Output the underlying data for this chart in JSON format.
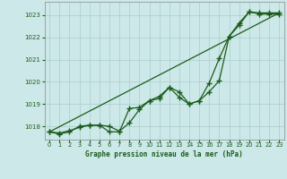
{
  "title": "Graphe pression niveau de la mer (hPa)",
  "background_color": "#cce8e8",
  "plot_bg_color": "#cce8e8",
  "grid_color": "#aacece",
  "line_color": "#1a5c1a",
  "xlim": [
    -0.5,
    23.5
  ],
  "ylim": [
    1017.4,
    1023.6
  ],
  "xticks": [
    0,
    1,
    2,
    3,
    4,
    5,
    6,
    7,
    8,
    9,
    10,
    11,
    12,
    13,
    14,
    15,
    16,
    17,
    18,
    19,
    20,
    21,
    22,
    23
  ],
  "yticks": [
    1018,
    1019,
    1020,
    1021,
    1022,
    1023
  ],
  "hours": [
    0,
    1,
    2,
    3,
    4,
    5,
    6,
    7,
    8,
    9,
    10,
    11,
    12,
    13,
    14,
    15,
    16,
    17,
    18,
    19,
    20,
    21,
    22,
    23
  ],
  "trend_x": [
    0,
    23
  ],
  "trend_y": [
    1017.75,
    1023.1
  ],
  "line1_y": [
    1017.75,
    1017.7,
    1017.8,
    1017.95,
    1018.05,
    1018.05,
    1018.0,
    1017.78,
    1018.15,
    1018.75,
    1019.15,
    1019.35,
    1019.75,
    1019.3,
    1019.0,
    1019.15,
    1019.55,
    1020.05,
    1022.05,
    1022.65,
    1023.15,
    1023.1,
    1023.1,
    1023.1
  ],
  "line2_y": [
    1017.75,
    1017.65,
    1017.75,
    1018.0,
    1018.05,
    1018.05,
    1017.75,
    1017.75,
    1018.8,
    1018.85,
    1019.15,
    1019.25,
    1019.75,
    1019.55,
    1019.0,
    1019.15,
    1019.95,
    1021.05,
    1022.05,
    1022.55,
    1023.15,
    1023.05,
    1023.05,
    1023.05
  ]
}
